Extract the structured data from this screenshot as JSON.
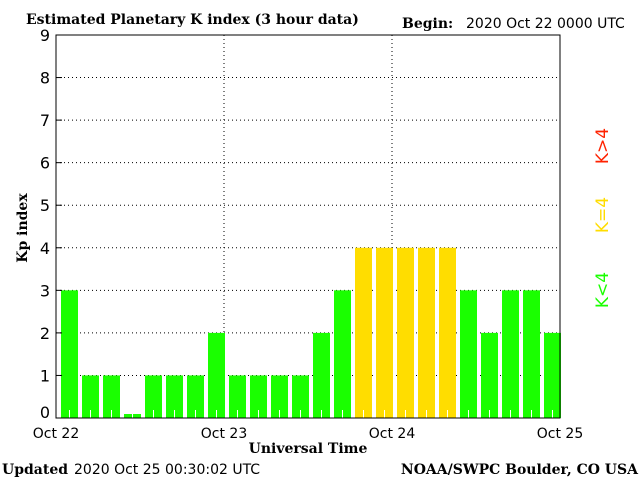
{
  "chart_data": {
    "type": "bar",
    "title": "Estimated Planetary K index (3 hour data)",
    "begin_label": "Begin:",
    "begin_value": "2020 Oct 22 0000 UTC",
    "ylabel": "Kp index",
    "xlabel": "Universal Time",
    "ylim": [
      0,
      9
    ],
    "yticks": [
      "0",
      "1",
      "2",
      "3",
      "4",
      "5",
      "6",
      "7",
      "8",
      "9"
    ],
    "xticks": [
      "Oct 22",
      "Oct 23",
      "Oct 24",
      "Oct 25"
    ],
    "grid": true,
    "values": [
      3,
      1,
      1,
      0,
      1,
      1,
      1,
      2,
      1,
      1,
      1,
      1,
      2,
      3,
      4,
      4,
      4,
      4,
      4,
      3,
      2,
      3,
      3,
      2
    ],
    "legend": [
      {
        "label": "K<4",
        "color": "#1aff00"
      },
      {
        "label": "K=4",
        "color": "#ffdd00"
      },
      {
        "label": "K>4",
        "color": "#ff2200"
      }
    ]
  },
  "footer": {
    "updated_label": "Updated",
    "updated_value": "2020 Oct 25 00:30:02 UTC",
    "source": "NOAA/SWPC Boulder, CO USA"
  }
}
